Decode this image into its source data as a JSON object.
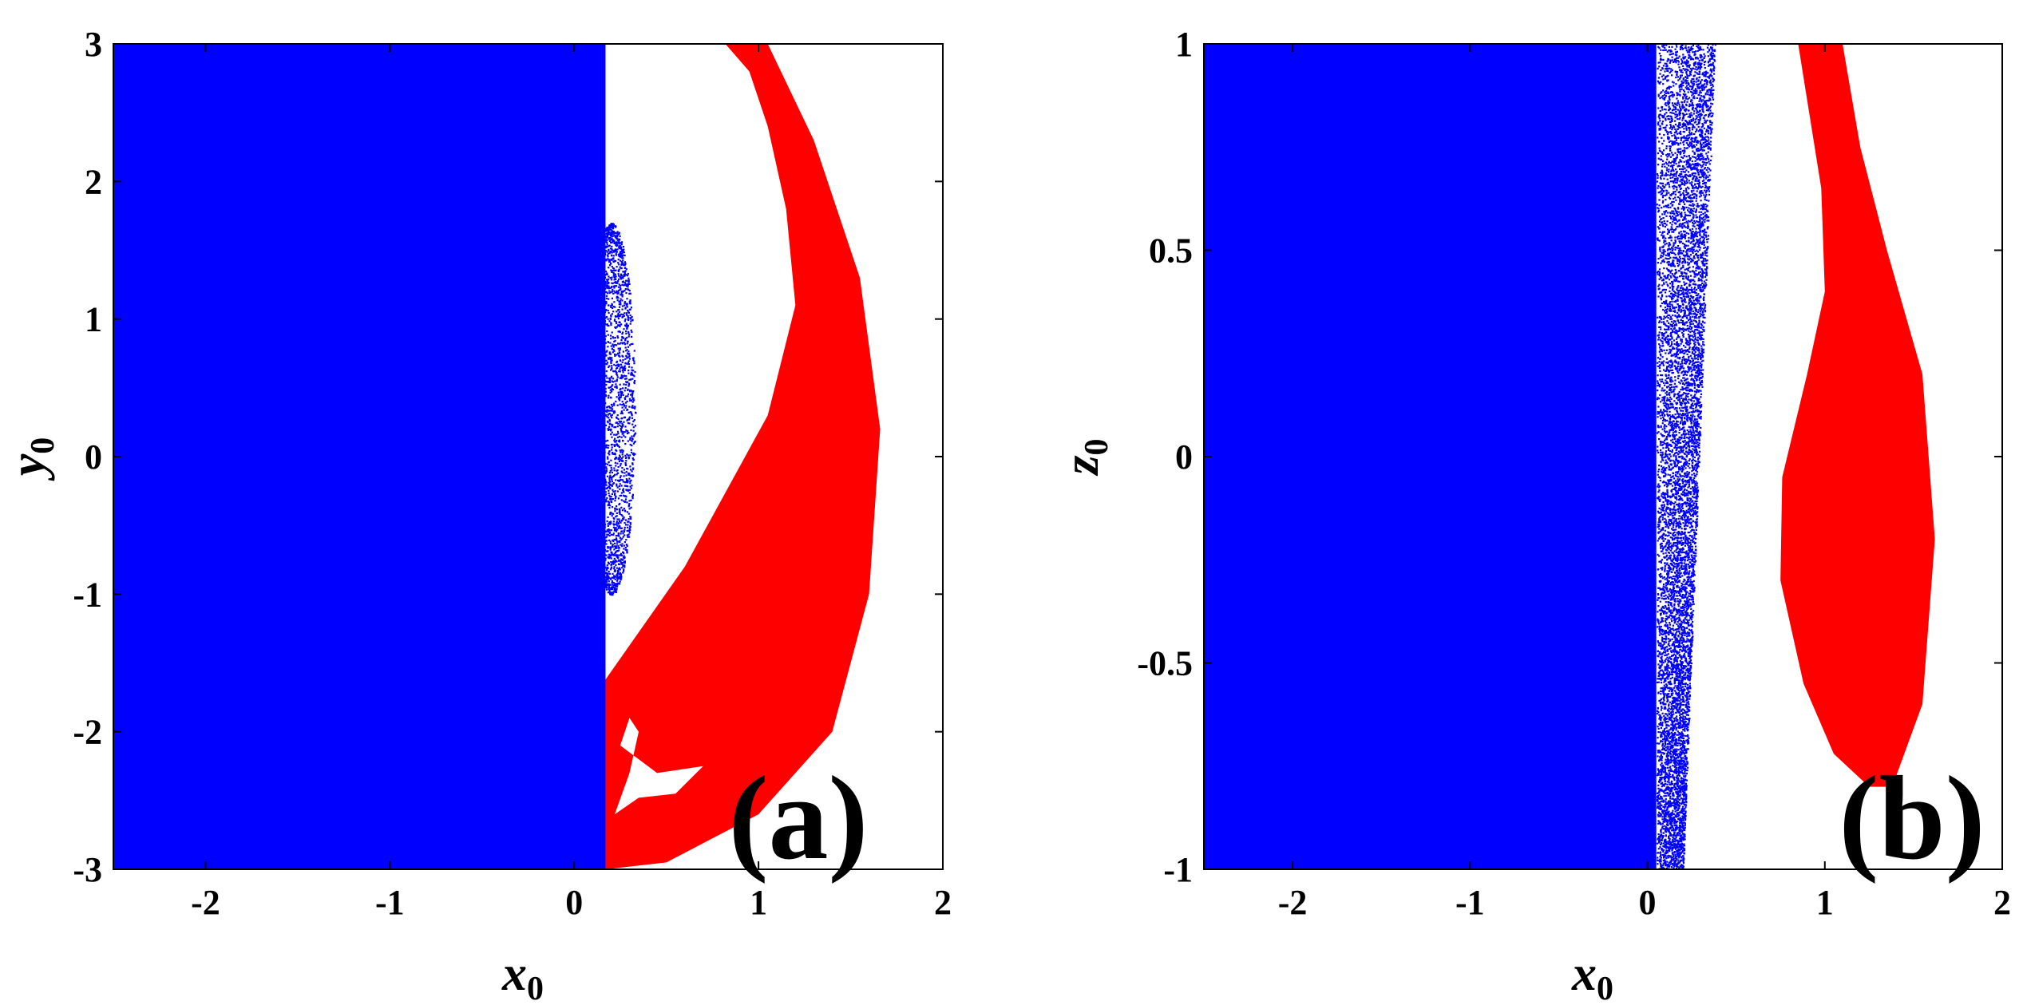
{
  "chart_data": [
    {
      "type": "basin_map",
      "panel_label": "(a)",
      "xlabel": "x",
      "xlabel_sub": "0",
      "ylabel": "y",
      "ylabel_sub": "0",
      "xlim": [
        -2.5,
        2
      ],
      "ylim": [
        -3,
        3
      ],
      "xticks": [
        -2,
        -1,
        0,
        1,
        2
      ],
      "yticks": [
        -3,
        -2,
        -1,
        0,
        1,
        2,
        3
      ],
      "xtick_labels": [
        "-2",
        "-1",
        "0",
        "1",
        "2"
      ],
      "ytick_labels": [
        "-3",
        "-2",
        "-1",
        "0",
        "1",
        "2",
        "3"
      ],
      "grid": false,
      "colors": {
        "basin_blue": "#0000ff",
        "basin_red": "#ff0000",
        "background": "#ffffff"
      },
      "regions": [
        {
          "color": "basin_blue",
          "shape": "rect",
          "x_range": [
            -2.5,
            0.17
          ],
          "y_range": [
            -3,
            3
          ]
        },
        {
          "color": "basin_blue",
          "shape": "speckle",
          "center": [
            0.2,
            0.35
          ],
          "x_halfwidth": 0.13,
          "y_range": [
            -1.0,
            1.7
          ]
        },
        {
          "color": "basin_red",
          "shape": "polygon",
          "outline": [
            [
              0.17,
              -1.62
            ],
            [
              0.6,
              -0.8
            ],
            [
              1.05,
              0.3
            ],
            [
              1.2,
              1.1
            ],
            [
              1.15,
              1.8
            ],
            [
              1.05,
              2.4
            ],
            [
              0.95,
              2.8
            ],
            [
              0.82,
              3.0
            ],
            [
              1.05,
              3.0
            ],
            [
              1.3,
              2.3
            ],
            [
              1.55,
              1.3
            ],
            [
              1.66,
              0.2
            ],
            [
              1.6,
              -1.0
            ],
            [
              1.4,
              -2.0
            ],
            [
              1.0,
              -2.6
            ],
            [
              0.5,
              -2.95
            ],
            [
              0.17,
              -3.0
            ]
          ],
          "holes": [
            [
              [
                0.22,
                -2.6
              ],
              [
                0.3,
                -2.3
              ],
              [
                0.35,
                -2.0
              ],
              [
                0.3,
                -1.9
              ],
              [
                0.25,
                -2.1
              ],
              [
                0.45,
                -2.3
              ],
              [
                0.7,
                -2.25
              ],
              [
                0.55,
                -2.45
              ],
              [
                0.35,
                -2.48
              ]
            ]
          ]
        }
      ]
    },
    {
      "type": "basin_map",
      "panel_label": "(b)",
      "xlabel": "x",
      "xlabel_sub": "0",
      "ylabel": "z",
      "ylabel_sub": "0",
      "xlim": [
        -2.5,
        2
      ],
      "ylim": [
        -1,
        1
      ],
      "xticks": [
        -2,
        -1,
        0,
        1,
        2
      ],
      "yticks": [
        -1,
        -0.5,
        0,
        0.5,
        1
      ],
      "xtick_labels": [
        "-2",
        "-1",
        "0",
        "1",
        "2"
      ],
      "ytick_labels": [
        "-1",
        "-0.5",
        "0",
        "0.5",
        "1"
      ],
      "grid": false,
      "colors": {
        "basin_blue": "#0000ff",
        "basin_red": "#ff0000",
        "background": "#ffffff"
      },
      "regions": [
        {
          "color": "basin_blue",
          "shape": "rect",
          "x_range": [
            -2.5,
            0.05
          ],
          "y_range": [
            -1,
            1
          ]
        },
        {
          "color": "basin_blue",
          "shape": "speckle_band",
          "x_left": 0.05,
          "x_right_top": 0.38,
          "x_right_bottom": 0.2,
          "y_range": [
            -1,
            1
          ]
        },
        {
          "color": "basin_red",
          "shape": "polygon",
          "outline": [
            [
              0.85,
              1.0
            ],
            [
              0.98,
              0.65
            ],
            [
              1.0,
              0.4
            ],
            [
              0.9,
              0.2
            ],
            [
              0.76,
              -0.05
            ],
            [
              0.75,
              -0.3
            ],
            [
              0.88,
              -0.55
            ],
            [
              1.05,
              -0.72
            ],
            [
              1.25,
              -0.8
            ],
            [
              1.38,
              -0.8
            ],
            [
              1.55,
              -0.6
            ],
            [
              1.62,
              -0.2
            ],
            [
              1.55,
              0.2
            ],
            [
              1.35,
              0.5
            ],
            [
              1.2,
              0.75
            ],
            [
              1.1,
              1.0
            ]
          ],
          "holes": []
        }
      ]
    }
  ]
}
